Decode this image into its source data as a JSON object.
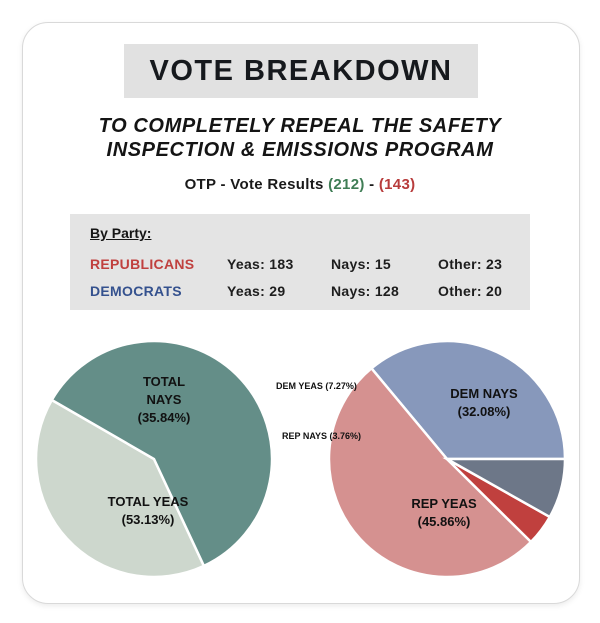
{
  "header": {
    "title": "VOTE BREAKDOWN",
    "subtitle_line1": "TO COMPLETELY REPEAL THE SAFETY",
    "subtitle_line2": "INSPECTION & EMISSIONS PROGRAM",
    "results_prefix": "OTP - Vote Results ",
    "results_yes": "(212)",
    "results_sep": " - ",
    "results_no": "(143)"
  },
  "party_table": {
    "heading": "By Party:",
    "rows": [
      {
        "party": "REPUBLICANS",
        "yeas": "Yeas: 183",
        "nays": "Nays: 15",
        "other": "Other: 23"
      },
      {
        "party": "DEMOCRATS",
        "yeas": "Yeas: 29",
        "nays": "Nays: 128",
        "other": "Other: 20"
      }
    ]
  },
  "colors": {
    "total_yeas": "#648e88",
    "total_nays": "#cdd7cd",
    "rep_yeas": "#d59190",
    "rep_nays": "#c0403e",
    "dem_yeas": "#6d7788",
    "dem_nays": "#8798bb",
    "accent_green": "#3f7d55",
    "accent_red": "#b83c3c"
  },
  "chart_data": [
    {
      "type": "pie",
      "slices": [
        {
          "label_line1": "TOTAL NAYS",
          "label_line2": "(35.84%)",
          "value": 35.84,
          "color": "#cdd7cd"
        },
        {
          "label_line1": "TOTAL YEAS",
          "label_line2": "(53.13%)",
          "value": 53.13,
          "color": "#648e88"
        }
      ]
    },
    {
      "type": "pie",
      "slices": [
        {
          "label_line1": "DEM NAYS",
          "label_line2": "(32.08%)",
          "value": 32.08,
          "color": "#8798bb"
        },
        {
          "label_line1": "REP YEAS",
          "label_line2": "(45.86%)",
          "value": 45.86,
          "color": "#d59190"
        },
        {
          "label_line1": "REP NAYS",
          "label_line2": "(3.76%)",
          "value": 3.76,
          "color": "#c0403e"
        },
        {
          "label_line1": "DEM YEAS",
          "label_line2": "(7.27%)",
          "value": 7.27,
          "color": "#6d7788"
        }
      ]
    }
  ]
}
